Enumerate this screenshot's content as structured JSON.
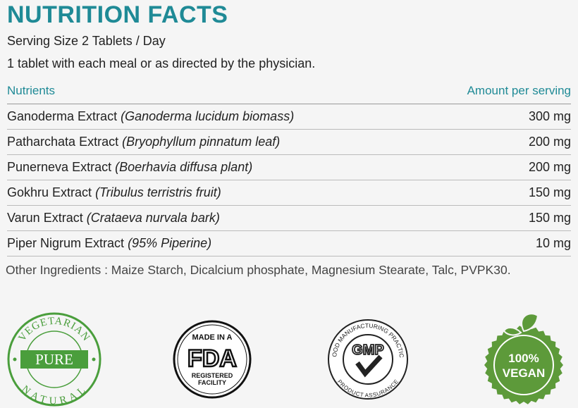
{
  "header": {
    "title": "NUTRITION FACTS",
    "serving": "Serving Size 2 Tablets / Day",
    "directions": "1 tablet with each meal or as directed by the physician."
  },
  "table": {
    "columns": [
      "Nutrients",
      "Amount per serving"
    ],
    "rows": [
      {
        "name": "Ganoderma Extract",
        "note": "(Ganoderma lucidum biomass)",
        "amount": "300 mg"
      },
      {
        "name": "Patharchata Extract",
        "note": "(Bryophyllum pinnatum leaf)",
        "amount": "200 mg"
      },
      {
        "name": "Punerneva Extract",
        "note": "(Boerhavia diffusa plant)",
        "amount": "200 mg"
      },
      {
        "name": "Gokhru Extract",
        "note": "(Tribulus terristris fruit)",
        "amount": "150 mg"
      },
      {
        "name": "Varun Extract",
        "note": "(Crataeva nurvala bark)",
        "amount": "150 mg"
      },
      {
        "name": "Piper Nigrum Extract",
        "note": "(95% Piperine)",
        "amount": "10 mg"
      }
    ]
  },
  "other_ingredients": "Other Ingredients : Maize Starch, Dicalcium phosphate, Magnesium Stearate, Talc, PVPK30.",
  "badges": [
    {
      "top": "VEGETARIAN",
      "center": "PURE",
      "bottom": "NATURAL"
    },
    {
      "top": "MADE IN A",
      "center": "FDA",
      "bottom": [
        "REGISTERED",
        "FACILITY"
      ]
    },
    {
      "top": "GOOD MANUFACTURING PRACTICE",
      "center": "GMP",
      "bottom": "PRODUCT ASSURANCE"
    },
    {
      "top": "100%",
      "center": "VEGAN"
    }
  ]
}
